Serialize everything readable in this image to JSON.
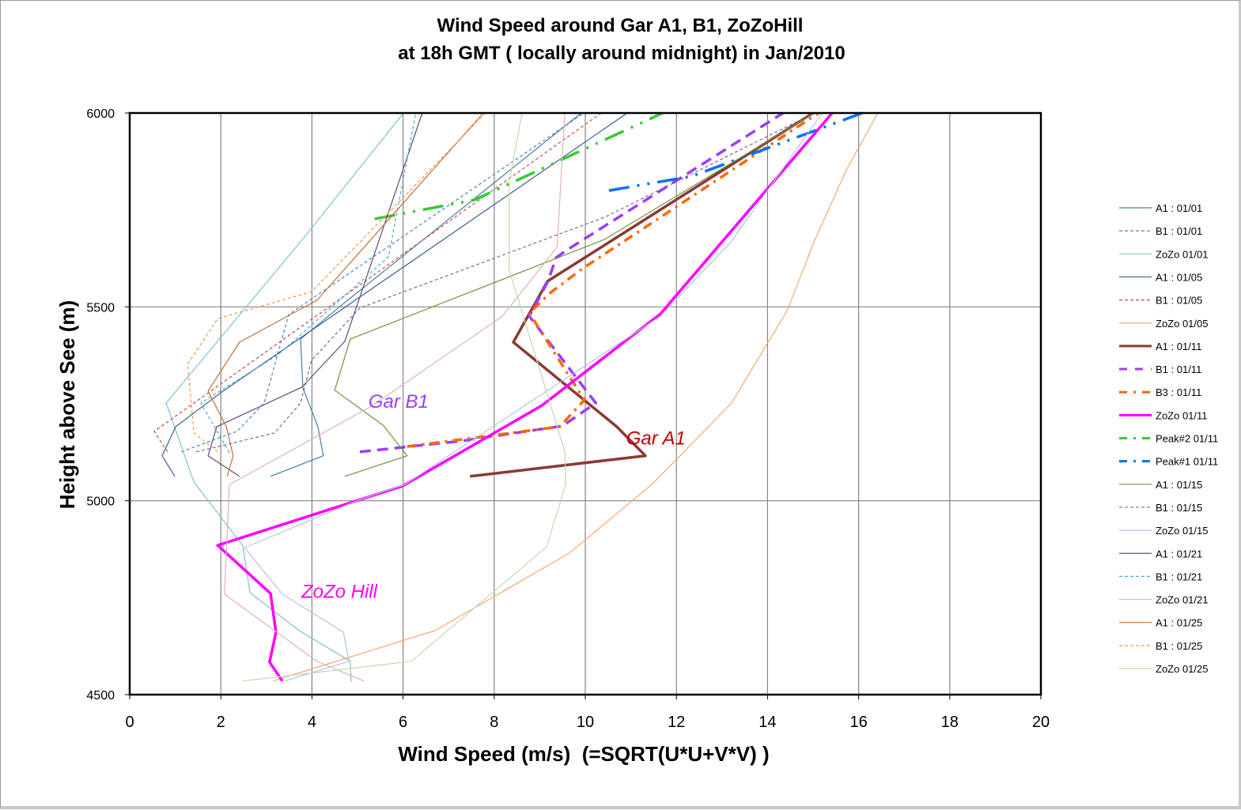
{
  "chart_data": {
    "type": "line",
    "title": [
      "Wind Speed around Gar A1, B1, ZoZoHill",
      "at 18h GMT ( locally around midnight) in Jan/2010"
    ],
    "xlabel": "Wind Speed (m/s)  (=SQRT(U*U+V*V) )",
    "ylabel": "Height above See (m)",
    "xlim": [
      0,
      20
    ],
    "ylim": [
      4500,
      6000
    ],
    "xticks": [
      "0",
      "2",
      "4",
      "6",
      "8",
      "10",
      "12",
      "14",
      "16",
      "18",
      "20"
    ],
    "yticks": [
      "4500",
      "5000",
      "5500",
      "6000"
    ],
    "grid": true,
    "legend_position": "right",
    "annotations": [
      {
        "text": "Gar B1",
        "x": 5.9,
        "y": 5240,
        "color": "#9b3cff"
      },
      {
        "text": "Gar A1",
        "x": 11.55,
        "y": 5145,
        "color": "#c00000"
      },
      {
        "text": "ZoZo Hill",
        "x": 4.6,
        "y": 4750,
        "color": "#ff00ff"
      }
    ],
    "series": [
      {
        "name": "A1 : 01/01",
        "color": "#4a7ea0",
        "style": "solid",
        "width": 1,
        "x": [
          3.09,
          4.25,
          4.13,
          3.8,
          3.75,
          4.72,
          9.91
        ],
        "y": [
          5063,
          5116,
          5191,
          5291,
          5417,
          5511,
          6000
        ]
      },
      {
        "name": "B1 : 01/01",
        "color": "#4f81bd",
        "style": "dash",
        "width": 1,
        "x": [
          1.13,
          2.36,
          2.95,
          3.49,
          9.97
        ],
        "y": [
          5126,
          5179,
          5252,
          5480,
          6000
        ]
      },
      {
        "name": "ZoZo 01/01",
        "color": "#7fc0d8",
        "style": "solid",
        "width": 1,
        "x": [
          4.86,
          4.84,
          3.72,
          2.64,
          2.48,
          1.41,
          0.8,
          3.82,
          6.01
        ],
        "y": [
          4533,
          4586,
          4665,
          4763,
          4885,
          5048,
          5252,
          5678,
          6000
        ]
      },
      {
        "name": "A1 : 01/05",
        "color": "#3a5f94",
        "style": "solid",
        "width": 1,
        "x": [
          0.99,
          0.71,
          1.01,
          1.98,
          10.92
        ],
        "y": [
          5063,
          5116,
          5191,
          5277,
          6000
        ]
      },
      {
        "name": "B1 : 01/05",
        "color": "#c0504d",
        "style": "dash",
        "width": 1,
        "x": [
          0.83,
          0.54,
          10.35
        ],
        "y": [
          5126,
          5179,
          6000
        ]
      },
      {
        "name": "ZoZo 01/05",
        "color": "#f9a870",
        "style": "solid",
        "width": 1,
        "x": [
          3.14,
          6.7,
          8.0,
          9.65,
          11.48,
          13.21,
          14.43,
          15.03,
          15.73,
          16.42
        ],
        "y": [
          4535,
          4665,
          4753,
          4865,
          5044,
          5252,
          5490,
          5670,
          5853,
          6000
        ]
      },
      {
        "name": "A1 : 01/11",
        "color": "#8b3a35",
        "style": "solid",
        "width": 3,
        "x": [
          7.47,
          11.32,
          10.69,
          8.42,
          9.17,
          15.0
        ],
        "y": [
          5063,
          5116,
          5191,
          5409,
          5566,
          6000
        ]
      },
      {
        "name": "B1 : 01/11",
        "color": "#9b3cff",
        "style": "dash",
        "width": 3,
        "x": [
          5.05,
          7.27,
          9.5,
          10.23,
          8.77,
          9.18,
          9.36,
          9.6,
          14.34
        ],
        "y": [
          5126,
          5154,
          5193,
          5252,
          5476,
          5566,
          5627,
          5647,
          6000
        ]
      },
      {
        "name": "B3 : 01/11",
        "color": "#ff6600",
        "style": "dashdot",
        "width": 3,
        "x": [
          6.09,
          9.44,
          9.98,
          8.77,
          9.24,
          9.93,
          15.12
        ],
        "y": [
          5140,
          5191,
          5260,
          5484,
          5537,
          5598,
          6000
        ]
      },
      {
        "name": "ZoZo 01/11",
        "color": "#ff00ff",
        "style": "solid",
        "width": 3,
        "x": [
          3.35,
          3.07,
          3.21,
          3.09,
          1.93,
          5.99,
          9.05,
          11.65,
          15.42
        ],
        "y": [
          4535,
          4584,
          4661,
          4761,
          4885,
          5038,
          5246,
          5482,
          6000
        ]
      },
      {
        "name": "Peak#2 01/11",
        "color": "#33cc33",
        "style": "longdashdot",
        "width": 3,
        "x": [
          5.38,
          7.57,
          11.7
        ],
        "y": [
          5727,
          5776,
          6000
        ]
      },
      {
        "name": "Peak#1 01/11",
        "color": "#0070ff",
        "style": "longdashdot",
        "width": 3,
        "x": [
          10.52,
          12.34,
          16.08
        ],
        "y": [
          5800,
          5837,
          6000
        ]
      },
      {
        "name": "A1 : 01/15",
        "color": "#76923c",
        "style": "solid",
        "width": 1,
        "x": [
          4.72,
          6.09,
          5.56,
          4.5,
          4.84,
          10.42,
          15.03
        ],
        "y": [
          5063,
          5116,
          5195,
          5285,
          5417,
          5674,
          6000
        ]
      },
      {
        "name": "B1 : 01/15",
        "color": "#8064a2",
        "style": "dash",
        "width": 1,
        "x": [
          1.46,
          3.18,
          3.75,
          3.99,
          5.05,
          10.42,
          15.03
        ],
        "y": [
          5126,
          5175,
          5252,
          5362,
          5497,
          5731,
          6000
        ]
      },
      {
        "name": "ZoZo 01/15",
        "color": "#b3c3e0",
        "style": "solid",
        "width": 1,
        "x": [
          3.4,
          4.81,
          4.69,
          3.35,
          2.52,
          5.03,
          6.04,
          11.65,
          13.2,
          15.2
        ],
        "y": [
          4535,
          4586,
          4661,
          4759,
          4879,
          5002,
          5042,
          5476,
          5668,
          6000
        ]
      },
      {
        "name": "A1 : 01/21",
        "color": "#5f4b7a",
        "style": "solid",
        "width": 1,
        "x": [
          2.41,
          1.72,
          1.91,
          3.78,
          4.72,
          6.42
        ],
        "y": [
          5063,
          5116,
          5191,
          5293,
          5411,
          6000
        ]
      },
      {
        "name": "B1 : 01/21",
        "color": "#4bacc6",
        "style": "dash",
        "width": 1,
        "x": [
          2.19,
          1.56,
          3.25,
          5.68,
          6.28
        ],
        "y": [
          5124,
          5252,
          5376,
          5629,
          6000
        ]
      },
      {
        "name": "ZoZo 01/21",
        "color": "#e6b0b0",
        "style": "solid",
        "width": 1,
        "x": [
          5.14,
          4.11,
          2.08,
          2.19,
          5.31,
          8.18,
          9.38,
          9.55
        ],
        "y": [
          4535,
          4586,
          4759,
          5042,
          5244,
          5476,
          5654,
          6000
        ]
      },
      {
        "name": "A1 : 01/25",
        "color": "#c0703a",
        "style": "solid",
        "width": 1,
        "x": [
          2.14,
          2.27,
          2.12,
          1.72,
          2.41,
          4.11,
          7.76
        ],
        "y": [
          5063,
          5116,
          5191,
          5283,
          5409,
          5517,
          6000
        ]
      },
      {
        "name": "B1 : 01/25",
        "color": "#f79646",
        "style": "dash",
        "width": 1,
        "x": [
          1.93,
          1.41,
          1.27,
          1.93,
          3.99,
          7.81
        ],
        "y": [
          5126,
          5175,
          5352,
          5470,
          5539,
          6000
        ]
      },
      {
        "name": "ZoZo 01/25",
        "color": "#c4d7b0",
        "style": "solid",
        "width": 1,
        "x": [
          2.48,
          6.18,
          9.15,
          9.57,
          9.55,
          8.33,
          8.33,
          8.61
        ],
        "y": [
          4535,
          4586,
          4881,
          5042,
          5126,
          5595,
          5821,
          6000
        ]
      }
    ]
  }
}
